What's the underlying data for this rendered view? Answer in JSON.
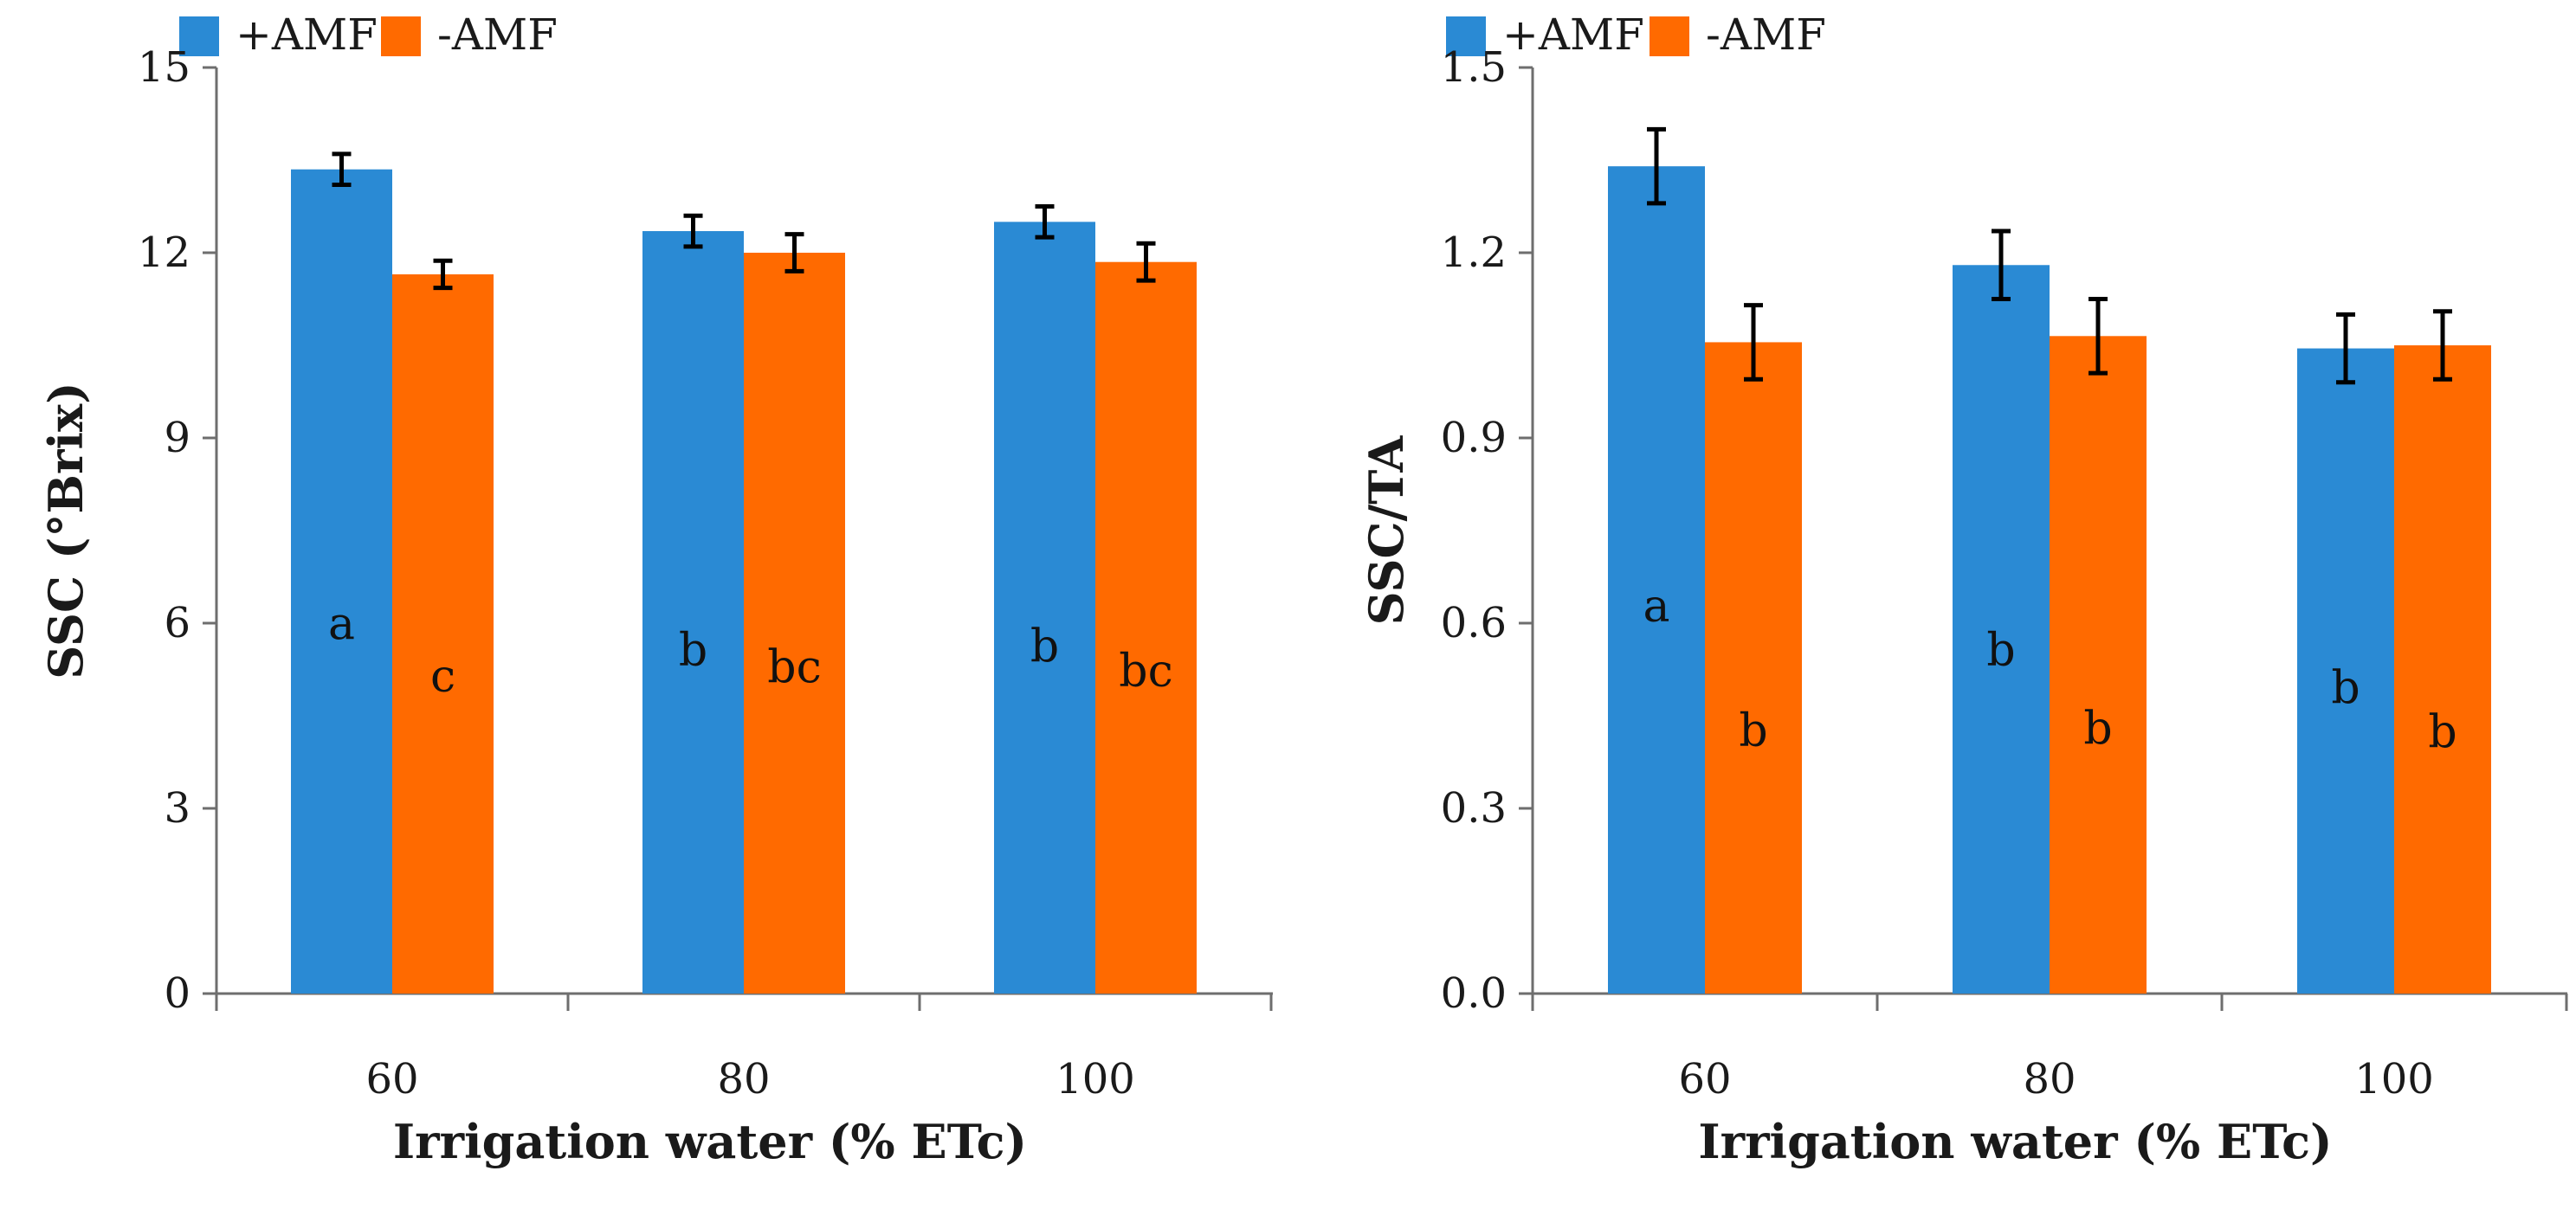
{
  "chart_data": [
    {
      "type": "bar",
      "categories": [
        "60",
        "80",
        "100"
      ],
      "series": [
        {
          "name": "+AMF",
          "color": "#2a8ad4",
          "values": [
            13.35,
            12.35,
            12.5
          ],
          "errors": [
            0.25,
            0.25,
            0.25
          ],
          "letters": [
            "a",
            "b",
            "b"
          ]
        },
        {
          "name": "-AMF",
          "color": "#ff6a00",
          "values": [
            11.65,
            12.0,
            11.85
          ],
          "errors": [
            0.22,
            0.3,
            0.3
          ],
          "letters": [
            "c",
            "bc",
            "bc"
          ]
        }
      ],
      "ylim": [
        0,
        15
      ],
      "yticks": [
        "0",
        "3",
        "6",
        "9",
        "12",
        "15"
      ],
      "xlabel": "Irrigation water (% ETc)",
      "ylabel": "SSC (°Brix)",
      "title": "",
      "grid": false,
      "legend": "top"
    },
    {
      "type": "bar",
      "categories": [
        "60",
        "80",
        "100"
      ],
      "series": [
        {
          "name": "+AMF",
          "color": "#2a8ad4",
          "values": [
            1.34,
            1.18,
            1.045
          ],
          "errors": [
            0.06,
            0.055,
            0.055
          ],
          "letters": [
            "a",
            "b",
            "b"
          ]
        },
        {
          "name": "-AMF",
          "color": "#ff6a00",
          "values": [
            1.055,
            1.065,
            1.05
          ],
          "errors": [
            0.06,
            0.06,
            0.055
          ],
          "letters": [
            "b",
            "b",
            "b"
          ]
        }
      ],
      "ylim": [
        0,
        1.5
      ],
      "yticks": [
        "0.0",
        "0.3",
        "0.6",
        "0.9",
        "1.2",
        "1.5"
      ],
      "xlabel": "Irrigation water (% ETc)",
      "ylabel": "SSC/TA",
      "title": "",
      "grid": false,
      "legend": "top"
    }
  ]
}
